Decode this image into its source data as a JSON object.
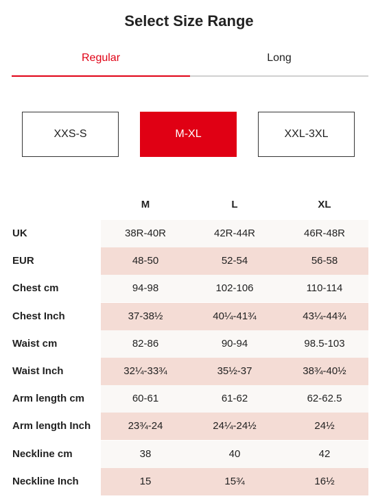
{
  "header": {
    "title": "Select Size Range"
  },
  "tabs": [
    {
      "label": "Regular",
      "active": true
    },
    {
      "label": "Long",
      "active": false
    }
  ],
  "size_ranges": [
    {
      "label": "XXS-S",
      "active": false
    },
    {
      "label": "M-XL",
      "active": true
    },
    {
      "label": "XXL-3XL",
      "active": false
    }
  ],
  "table": {
    "columns": [
      "M",
      "L",
      "XL"
    ],
    "rows": [
      [
        "UK",
        "38R-40R",
        "42R-44R",
        "46R-48R"
      ],
      [
        "EUR",
        "48-50",
        "52-54",
        "56-58"
      ],
      [
        "Chest cm",
        "94-98",
        "102-106",
        "110-114"
      ],
      [
        "Chest Inch",
        "37-38½",
        "40¼-41¾",
        "43¼-44¾"
      ],
      [
        "Waist cm",
        "82-86",
        "90-94",
        "98.5-103"
      ],
      [
        "Waist Inch",
        "32¼-33¾",
        "35½-37",
        "38¾-40½"
      ],
      [
        "Arm length cm",
        "60-61",
        "61-62",
        "62-62.5"
      ],
      [
        "Arm length Inch",
        "23¾-24",
        "24¼-24½",
        "24½"
      ],
      [
        "Neckline cm",
        "38",
        "40",
        "42"
      ],
      [
        "Neckline Inch",
        "15",
        "15¾",
        "16½"
      ]
    ]
  }
}
